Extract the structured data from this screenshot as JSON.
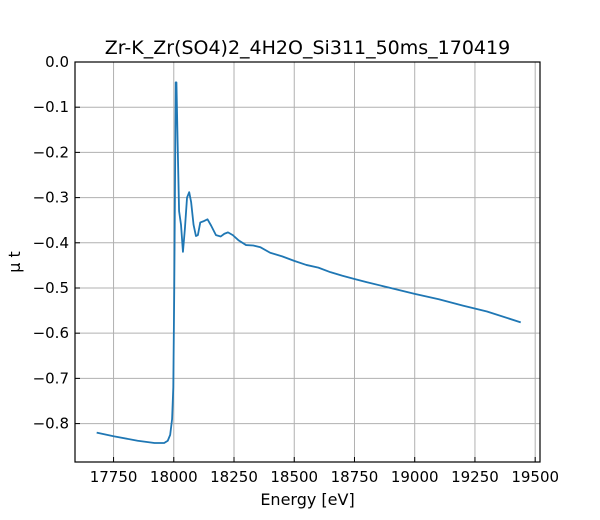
{
  "chart_data": {
    "type": "line",
    "title": "Zr-K_Zr(SO4)2_4H2O_Si311_50ms_170419",
    "xlabel": "Energy [eV]",
    "ylabel": "μ t",
    "xlim": [
      17590,
      19520
    ],
    "ylim": [
      -0.885,
      0.0
    ],
    "xticks": [
      17750,
      18000,
      18250,
      18500,
      18750,
      19000,
      19250,
      19500
    ],
    "yticks": [
      0.0,
      -0.1,
      -0.2,
      -0.3,
      -0.4,
      -0.5,
      -0.6,
      -0.7,
      -0.8
    ],
    "xtick_labels": [
      "17750",
      "18000",
      "18250",
      "18500",
      "18750",
      "19000",
      "19250",
      "19500"
    ],
    "ytick_labels": [
      "0.0",
      "−0.1",
      "−0.2",
      "−0.3",
      "−0.4",
      "−0.5",
      "−0.6",
      "−0.7",
      "−0.8"
    ],
    "grid": true,
    "series": [
      {
        "color": "#1f77b4",
        "x": [
          17680,
          17750,
          17850,
          17920,
          17960,
          17975,
          17985,
          17993,
          17998,
          18002,
          18006,
          18008,
          18011,
          18016,
          18022,
          18030,
          18038,
          18046,
          18055,
          18064,
          18072,
          18082,
          18092,
          18100,
          18110,
          18125,
          18140,
          18155,
          18175,
          18195,
          18210,
          18225,
          18245,
          18270,
          18300,
          18330,
          18360,
          18400,
          18450,
          18500,
          18550,
          18600,
          18650,
          18700,
          18750,
          18800,
          18900,
          19000,
          19100,
          19200,
          19300,
          19440
        ],
        "y": [
          -0.82,
          -0.828,
          -0.838,
          -0.843,
          -0.843,
          -0.838,
          -0.825,
          -0.79,
          -0.72,
          -0.5,
          -0.2,
          -0.045,
          -0.045,
          -0.18,
          -0.33,
          -0.36,
          -0.42,
          -0.37,
          -0.3,
          -0.288,
          -0.31,
          -0.36,
          -0.385,
          -0.383,
          -0.355,
          -0.352,
          -0.348,
          -0.362,
          -0.383,
          -0.386,
          -0.38,
          -0.377,
          -0.383,
          -0.395,
          -0.405,
          -0.406,
          -0.41,
          -0.422,
          -0.43,
          -0.44,
          -0.449,
          -0.455,
          -0.465,
          -0.473,
          -0.48,
          -0.487,
          -0.5,
          -0.513,
          -0.525,
          -0.539,
          -0.552,
          -0.576
        ]
      }
    ]
  }
}
